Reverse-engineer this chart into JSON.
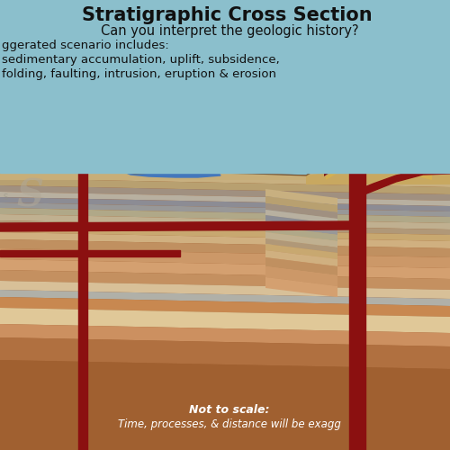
{
  "title": "Stratigraphic Cross Section",
  "subtitle": "Can you interpret the geologic history?",
  "line1": "ggerated scenario includes:",
  "line2": "sedimentary accumulation, uplift, subsidence,",
  "line3": "folding, faulting, intrusion, eruption & erosion",
  "bottom_text1": "Not to scale:",
  "bottom_text2": "Time, processes, & distance will be exagg",
  "bg_sky": "#8BBFCC",
  "magma_color": "#8B1010",
  "water_color": "#4477BB",
  "layers": [
    {
      "tl": 310,
      "tr": 300,
      "bl": 302,
      "br": 292,
      "color": "#C8B080"
    },
    {
      "tl": 302,
      "tr": 292,
      "bl": 294,
      "br": 284,
      "color": "#B8A070"
    },
    {
      "tl": 294,
      "tr": 284,
      "bl": 287,
      "br": 277,
      "color": "#A09080"
    },
    {
      "tl": 287,
      "tr": 277,
      "bl": 281,
      "br": 271,
      "color": "#B8B0A0"
    },
    {
      "tl": 281,
      "tr": 271,
      "bl": 275,
      "br": 265,
      "color": "#8C8C94"
    },
    {
      "tl": 275,
      "tr": 265,
      "bl": 269,
      "br": 259,
      "color": "#989898"
    },
    {
      "tl": 269,
      "tr": 259,
      "bl": 262,
      "br": 252,
      "color": "#B0A888"
    },
    {
      "tl": 262,
      "tr": 252,
      "bl": 255,
      "br": 245,
      "color": "#C0B090"
    },
    {
      "tl": 255,
      "tr": 245,
      "bl": 249,
      "br": 239,
      "color": "#B09878"
    },
    {
      "tl": 249,
      "tr": 239,
      "bl": 242,
      "br": 232,
      "color": "#C8A870"
    },
    {
      "tl": 242,
      "tr": 232,
      "bl": 234,
      "br": 224,
      "color": "#D0B080"
    },
    {
      "tl": 234,
      "tr": 224,
      "bl": 224,
      "br": 214,
      "color": "#C09060"
    },
    {
      "tl": 224,
      "tr": 214,
      "bl": 212,
      "br": 202,
      "color": "#CC9868"
    },
    {
      "tl": 212,
      "tr": 202,
      "bl": 200,
      "br": 190,
      "color": "#D4A070"
    },
    {
      "tl": 200,
      "tr": 190,
      "bl": 188,
      "br": 178,
      "color": "#C49060"
    },
    {
      "tl": 188,
      "tr": 178,
      "bl": 178,
      "br": 168,
      "color": "#D8C098"
    },
    {
      "tl": 178,
      "tr": 168,
      "bl": 170,
      "br": 160,
      "color": "#B0B0A8"
    },
    {
      "tl": 170,
      "tr": 160,
      "bl": 158,
      "br": 148,
      "color": "#C88850"
    },
    {
      "tl": 158,
      "tr": 148,
      "bl": 140,
      "br": 130,
      "color": "#E0C898"
    },
    {
      "tl": 140,
      "tr": 130,
      "bl": 125,
      "br": 115,
      "color": "#CC9060"
    },
    {
      "tl": 125,
      "tr": 115,
      "bl": 100,
      "br": 90,
      "color": "#B07040"
    },
    {
      "tl": 100,
      "tr": 90,
      "bl": 0,
      "br": 0,
      "color": "#A06030"
    }
  ]
}
